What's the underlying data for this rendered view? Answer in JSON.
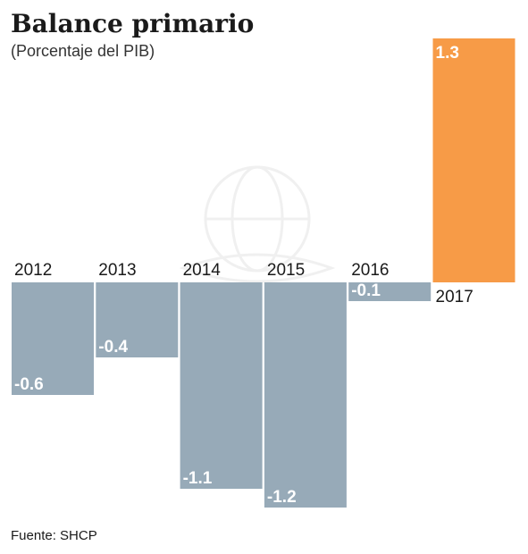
{
  "chart_data": {
    "type": "bar",
    "title": "Balance primario",
    "subtitle": "(Porcentaje del PIB)",
    "categories": [
      "2012",
      "2013",
      "2014",
      "2015",
      "2016",
      "2017"
    ],
    "values": [
      -0.6,
      -0.4,
      -1.1,
      -1.2,
      -0.1,
      1.3
    ],
    "value_labels": [
      "-0.6",
      "-0.4",
      "-1.1",
      "-1.2",
      "-0.1",
      "1.3"
    ],
    "ylim": [
      -1.2,
      1.3
    ],
    "grid": false,
    "colors": {
      "negative": "#97aab8",
      "positive": "#f79b47"
    }
  },
  "source": "Fuente: SHCP"
}
